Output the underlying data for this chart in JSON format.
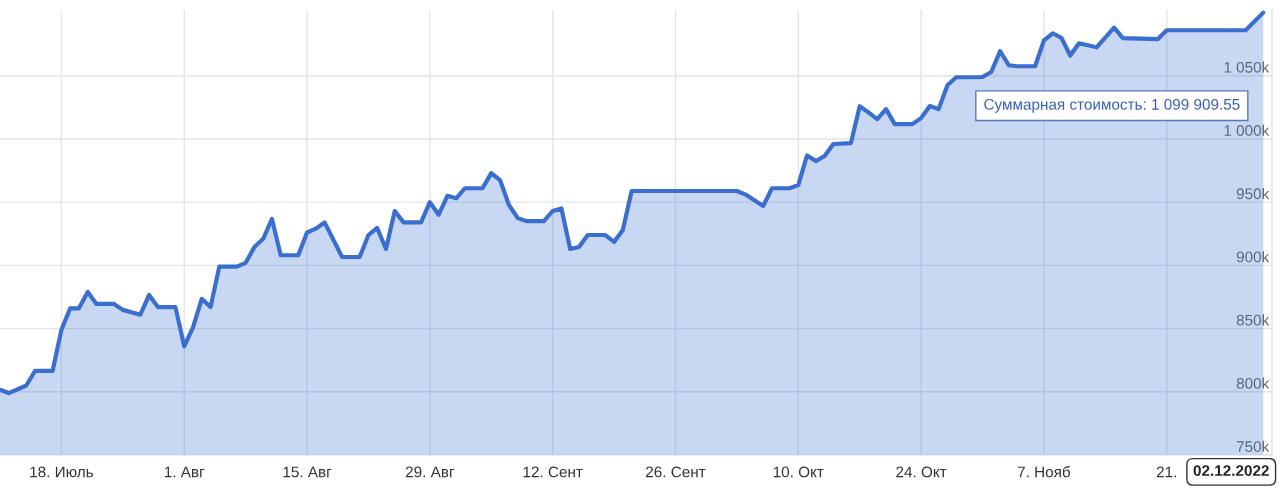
{
  "chart_data": {
    "type": "area",
    "x": [
      "2022-07-11",
      "2022-07-12",
      "2022-07-14",
      "2022-07-15",
      "2022-07-17",
      "2022-07-18",
      "2022-07-19",
      "2022-07-20",
      "2022-07-21",
      "2022-07-22",
      "2022-07-24",
      "2022-07-25",
      "2022-07-27",
      "2022-07-28",
      "2022-07-29",
      "2022-07-31",
      "2022-08-01",
      "2022-08-02",
      "2022-08-03",
      "2022-08-04",
      "2022-08-05",
      "2022-08-07",
      "2022-08-08",
      "2022-08-09",
      "2022-08-10",
      "2022-08-11",
      "2022-08-12",
      "2022-08-14",
      "2022-08-15",
      "2022-08-16",
      "2022-08-17",
      "2022-08-19",
      "2022-08-21",
      "2022-08-22",
      "2022-08-23",
      "2022-08-24",
      "2022-08-25",
      "2022-08-26",
      "2022-08-28",
      "2022-08-29",
      "2022-08-30",
      "2022-08-31",
      "2022-09-01",
      "2022-09-02",
      "2022-09-04",
      "2022-09-05",
      "2022-09-06",
      "2022-09-07",
      "2022-09-08",
      "2022-09-09",
      "2022-09-11",
      "2022-09-12",
      "2022-09-13",
      "2022-09-14",
      "2022-09-15",
      "2022-09-16",
      "2022-09-18",
      "2022-09-19",
      "2022-09-20",
      "2022-09-21",
      "2022-10-03",
      "2022-10-04",
      "2022-10-06",
      "2022-10-07",
      "2022-10-09",
      "2022-10-10",
      "2022-10-11",
      "2022-10-12",
      "2022-10-13",
      "2022-10-14",
      "2022-10-16",
      "2022-10-17",
      "2022-10-18",
      "2022-10-19",
      "2022-10-20",
      "2022-10-21",
      "2022-10-23",
      "2022-10-24",
      "2022-10-25",
      "2022-10-26",
      "2022-10-27",
      "2022-10-28",
      "2022-10-30",
      "2022-10-31",
      "2022-11-01",
      "2022-11-02",
      "2022-11-03",
      "2022-11-04",
      "2022-11-06",
      "2022-11-07",
      "2022-11-08",
      "2022-11-09",
      "2022-11-10",
      "2022-11-11",
      "2022-11-13",
      "2022-11-15",
      "2022-11-16",
      "2022-11-20",
      "2022-11-21",
      "2022-11-30",
      "2022-12-02"
    ],
    "series": [
      {
        "color": "#3a6ecf",
        "values": [
          801600,
          799000,
          805000,
          816600,
          816600,
          849000,
          866000,
          866000,
          879000,
          869500,
          869500,
          864800,
          861000,
          876600,
          867000,
          867000,
          836000,
          851000,
          873500,
          867000,
          899000,
          899000,
          902000,
          914500,
          921000,
          936700,
          908000,
          908000,
          926000,
          929000,
          934000,
          906600,
          906600,
          924000,
          929600,
          913000,
          943000,
          934000,
          934000,
          950000,
          940000,
          955000,
          953000,
          961000,
          961000,
          973000,
          967500,
          948000,
          937500,
          935000,
          935000,
          943000,
          945000,
          913000,
          914600,
          924000,
          924000,
          918500,
          928000,
          958800,
          958800,
          956000,
          947000,
          961000,
          961000,
          963500,
          987000,
          982500,
          986500,
          996000,
          996700,
          1025900,
          1021000,
          1015700,
          1023600,
          1011700,
          1011700,
          1016500,
          1026000,
          1023600,
          1042500,
          1048800,
          1048800,
          1049000,
          1053000,
          1069400,
          1058300,
          1057500,
          1057500,
          1078000,
          1083600,
          1080000,
          1066000,
          1075700,
          1072500,
          1088000,
          1079700,
          1079000,
          1086000,
          1086000,
          1099909.55
        ]
      }
    ],
    "xlim": [
      "2022-07-11",
      "2022-12-03"
    ],
    "xticks": [
      {
        "value": "2022-07-18",
        "label": "18. Июль"
      },
      {
        "value": "2022-08-01",
        "label": "1. Авг"
      },
      {
        "value": "2022-08-15",
        "label": "15. Авг"
      },
      {
        "value": "2022-08-29",
        "label": "29. Авг"
      },
      {
        "value": "2022-09-12",
        "label": "12. Сент"
      },
      {
        "value": "2022-09-26",
        "label": "26. Сент"
      },
      {
        "value": "2022-10-10",
        "label": "10. Окт"
      },
      {
        "value": "2022-10-24",
        "label": "24. Окт"
      },
      {
        "value": "2022-11-07",
        "label": "7. Нояб"
      },
      {
        "value": "2022-11-21",
        "label": "21."
      }
    ],
    "ylim": [
      750000,
      1102000
    ],
    "yticks": [
      {
        "value": 750000,
        "label": "750k"
      },
      {
        "value": 800000,
        "label": "800k"
      },
      {
        "value": 850000,
        "label": "850k"
      },
      {
        "value": 900000,
        "label": "900k"
      },
      {
        "value": 950000,
        "label": "950k"
      },
      {
        "value": 1000000,
        "label": "1 000k"
      },
      {
        "value": 1050000,
        "label": "1 050k"
      }
    ],
    "grid": true,
    "annotations": [
      "Суммарная стоимость: 1 099 909.55",
      "02.12.2022"
    ]
  }
}
